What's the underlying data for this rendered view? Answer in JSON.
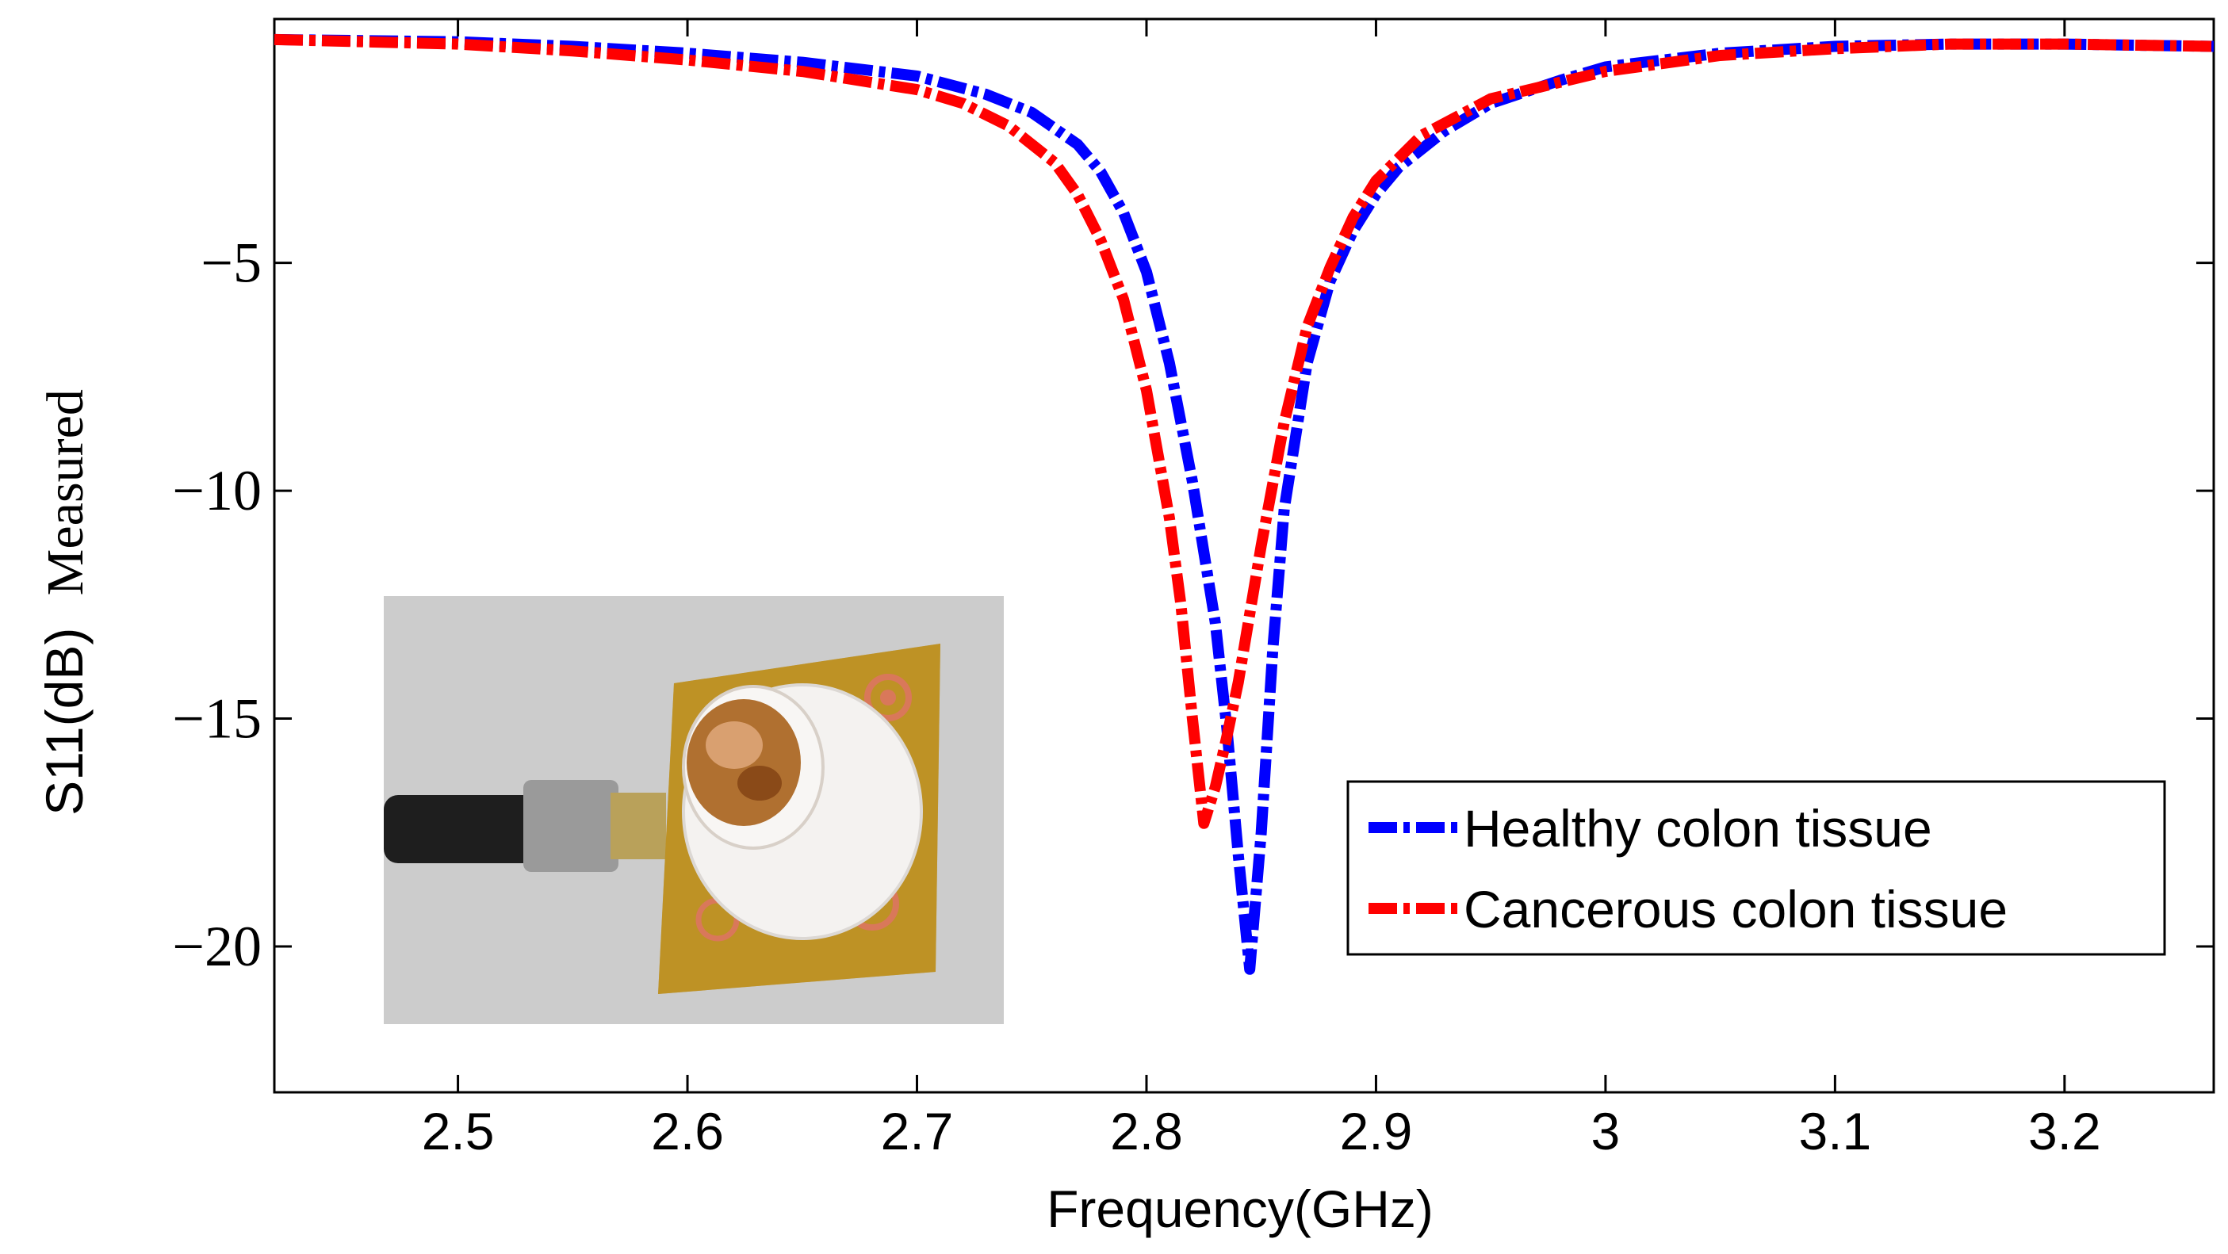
{
  "chart_data": {
    "type": "line",
    "title": "",
    "xlabel": "Frequency(GHz)",
    "ylabel_part1": "S11(dB)",
    "ylabel_part2": "Measured",
    "xlim": [
      2.42,
      3.265
    ],
    "ylim": [
      -23.2,
      0.35
    ],
    "xticks": [
      2.5,
      2.6,
      2.7,
      2.8,
      2.9,
      3.0,
      3.1,
      3.2
    ],
    "xtick_labels": [
      "2.5",
      "2.6",
      "2.7",
      "2.8",
      "2.9",
      "3",
      "3.1",
      "3.2"
    ],
    "yticks": [
      -5,
      -10,
      -15,
      -20
    ],
    "ytick_labels": [
      "−5",
      "−10",
      "−15",
      "−20"
    ],
    "grid": false,
    "legend_position": "lower-right",
    "series": [
      {
        "name": "Healthy colon tissue",
        "color": "#0000ff",
        "line_style": "dash-dot",
        "x": [
          2.42,
          2.5,
          2.55,
          2.6,
          2.65,
          2.7,
          2.73,
          2.75,
          2.77,
          2.78,
          2.79,
          2.8,
          2.81,
          2.82,
          2.83,
          2.835,
          2.84,
          2.845,
          2.85,
          2.855,
          2.86,
          2.87,
          2.88,
          2.89,
          2.9,
          2.91,
          2.93,
          2.95,
          2.98,
          3.0,
          3.05,
          3.1,
          3.15,
          3.2,
          3.265
        ],
        "y": [
          -0.1,
          -0.15,
          -0.25,
          -0.4,
          -0.6,
          -0.9,
          -1.3,
          -1.7,
          -2.4,
          -3.0,
          -3.9,
          -5.2,
          -7.2,
          -9.8,
          -12.9,
          -15.2,
          -18.0,
          -20.5,
          -17.5,
          -13.5,
          -10.4,
          -7.2,
          -5.4,
          -4.3,
          -3.5,
          -2.9,
          -2.1,
          -1.5,
          -1.0,
          -0.7,
          -0.4,
          -0.25,
          -0.2,
          -0.2,
          -0.25
        ]
      },
      {
        "name": "Cancerous colon tissue",
        "color": "#ff0000",
        "line_style": "dash-dot",
        "x": [
          2.42,
          2.5,
          2.55,
          2.6,
          2.65,
          2.7,
          2.72,
          2.74,
          2.76,
          2.77,
          2.78,
          2.79,
          2.8,
          2.81,
          2.815,
          2.82,
          2.825,
          2.83,
          2.835,
          2.84,
          2.85,
          2.86,
          2.87,
          2.88,
          2.89,
          2.9,
          2.92,
          2.95,
          3.0,
          3.05,
          3.1,
          3.15,
          3.2,
          3.265
        ],
        "y": [
          -0.1,
          -0.2,
          -0.35,
          -0.55,
          -0.8,
          -1.2,
          -1.5,
          -2.0,
          -2.8,
          -3.5,
          -4.5,
          -5.8,
          -7.8,
          -10.6,
          -12.5,
          -15.0,
          -17.3,
          -16.5,
          -15.4,
          -14.2,
          -11.2,
          -8.5,
          -6.4,
          -5.1,
          -4.0,
          -3.2,
          -2.2,
          -1.4,
          -0.8,
          -0.45,
          -0.3,
          -0.2,
          -0.2,
          -0.25
        ]
      }
    ]
  },
  "inset": {
    "description_icon": "antenna-photo-icon"
  }
}
